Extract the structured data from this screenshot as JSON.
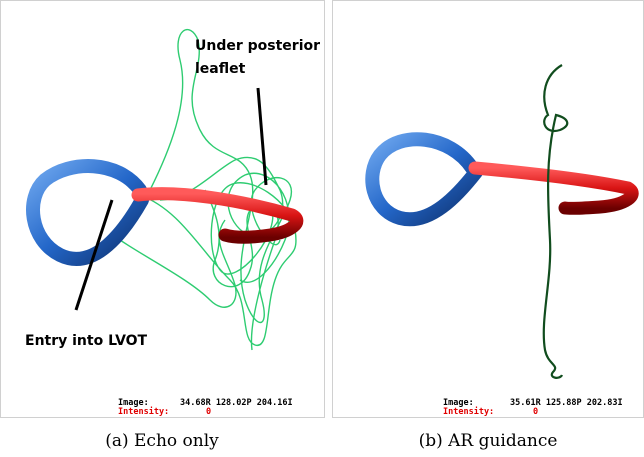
{
  "panels": [
    {
      "annotations": [
        "Under posterior",
        "leaflet",
        "Entry into LVOT"
      ],
      "status": {
        "image_label": "Image:",
        "image_value": "34.68R 128.02P 204.16I",
        "intensity_label": "Intensity:",
        "intensity_value": "0"
      },
      "caption": "(a) Echo only"
    },
    {
      "status": {
        "image_label": "Image:",
        "image_value": "35.61R 125.88P 202.83I",
        "intensity_label": "Intensity:",
        "intensity_value": "0"
      },
      "caption": "(b) AR guidance"
    }
  ]
}
